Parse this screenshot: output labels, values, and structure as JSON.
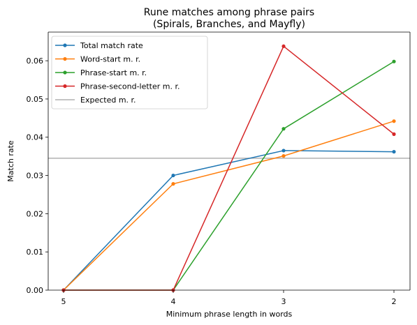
{
  "chart_data": {
    "type": "line",
    "title": "Rune matches among phrase pairs",
    "subtitle": "(Spirals, Branches, and Mayfly)",
    "xlabel": "Minimum phrase length in words",
    "ylabel": "Match rate",
    "categories": [
      "5",
      "4",
      "3",
      "2"
    ],
    "ylim": [
      0,
      0.0675
    ],
    "yticks": [
      "0.00",
      "0.01",
      "0.02",
      "0.03",
      "0.04",
      "0.05",
      "0.06"
    ],
    "ytick_values": [
      0,
      0.01,
      0.02,
      0.03,
      0.04,
      0.05,
      0.06
    ],
    "grid": false,
    "legend_position": "top-left",
    "series": [
      {
        "name": "Total match rate",
        "color": "#1f77b4",
        "values": [
          0,
          0.03,
          0.0365,
          0.0362
        ]
      },
      {
        "name": "Word-start m. r.",
        "color": "#ff7f0e",
        "values": [
          0,
          0.0278,
          0.0351,
          0.0442
        ]
      },
      {
        "name": "Phrase-start m. r.",
        "color": "#2ca02c",
        "values": [
          0,
          0,
          0.0422,
          0.0598
        ]
      },
      {
        "name": "Phrase-second-letter m. r.",
        "color": "#d62728",
        "values": [
          0,
          0,
          0.0638,
          0.0408
        ]
      }
    ],
    "reference_line": {
      "name": "Expected m. r.",
      "color": "#b0b0b0",
      "value": 0.0345
    }
  }
}
